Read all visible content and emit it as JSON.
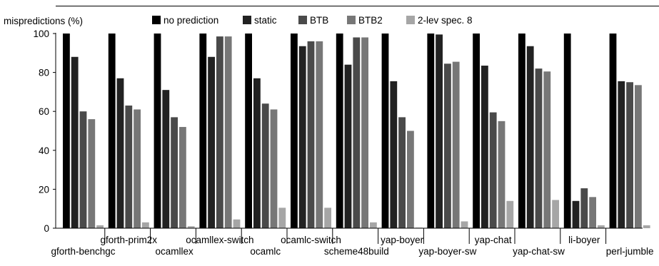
{
  "chart_data": {
    "type": "bar",
    "ylabel": "mispredictions (%)",
    "ylim": [
      0,
      100
    ],
    "yticks": [
      0,
      20,
      40,
      60,
      80,
      100
    ],
    "grid": false,
    "legend_position": "top",
    "categories": [
      "gforth-benchgc",
      "gforth-prim2x",
      "ocamllex",
      "ocamllex-switch",
      "ocamlc",
      "ocamlc-switch",
      "scheme48build",
      "yap-boyer",
      "yap-boyer-sw",
      "yap-chat",
      "yap-chat-sw",
      "li-boyer",
      "perl-jumble"
    ],
    "series": [
      {
        "name": "no prediction",
        "color": "#000000",
        "values": [
          100,
          100,
          100,
          100,
          100,
          100,
          100,
          100,
          100,
          100,
          100,
          100,
          100
        ]
      },
      {
        "name": "static",
        "color": "#222222",
        "values": [
          88,
          77,
          71,
          88,
          77,
          93.5,
          84,
          75.5,
          99.5,
          83.5,
          93.5,
          14,
          75.5
        ]
      },
      {
        "name": "BTB",
        "color": "#4a4a4a",
        "values": [
          60,
          63,
          57,
          98.5,
          64,
          96,
          98,
          57,
          84.5,
          59.5,
          82,
          20.5,
          75
        ]
      },
      {
        "name": "BTB2",
        "color": "#777777",
        "values": [
          56,
          61,
          52,
          98.5,
          61,
          96,
          98,
          50,
          85.5,
          55,
          80.5,
          16,
          73.5
        ]
      },
      {
        "name": "2-lev spec. 8",
        "color": "#a6a6a6",
        "values": [
          1.5,
          3,
          1,
          4.5,
          10.5,
          10.5,
          3,
          0.3,
          3.5,
          14,
          14.5,
          1.5,
          1.5
        ]
      }
    ]
  }
}
